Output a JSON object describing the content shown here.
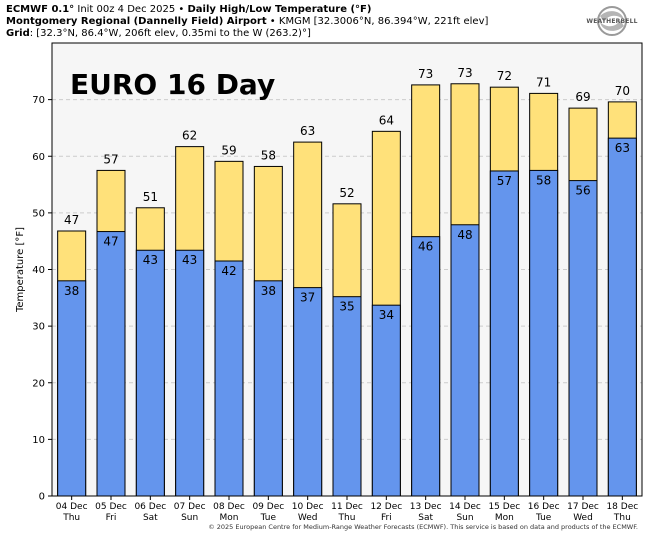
{
  "header": {
    "line1_bold": "ECMWF 0.1°",
    "line1_rest": " Init 00z 4 Dec 2025 • ",
    "line1_title": "Daily High/Low Temperature (°F)",
    "line2_bold": "Montgomery Regional (Dannelly Field) Airport",
    "line2_rest": " • KMGM [32.3006°N, 86.394°W, 221ft elev]",
    "line3_bold": "Grid",
    "line3_rest": ": [32.3°N, 86.4°W, 206ft elev, 0.35mi to the W (263.2)°]"
  },
  "logo": {
    "text": "WEATHERBELL"
  },
  "overlay_title": "EURO 16 Day",
  "footer": "© 2025 European Centre for Medium-Range Weather Forecasts (ECMWF). This service is based on data and products of the ECMWF.",
  "colors": {
    "high": "#ffe17a",
    "low": "#6495ed",
    "background": "#f6f6f6",
    "grid": "#cccccc"
  },
  "chart_data": {
    "type": "bar",
    "title": "Daily High/Low Temperature (°F)",
    "xlabel": "",
    "ylabel": "Temperature [°F]",
    "ylim": [
      0,
      80
    ],
    "yticks": [
      0,
      10,
      20,
      30,
      40,
      50,
      60,
      70
    ],
    "categories": [
      [
        "04 Dec",
        "Thu"
      ],
      [
        "05 Dec",
        "Fri"
      ],
      [
        "06 Dec",
        "Sat"
      ],
      [
        "07 Dec",
        "Sun"
      ],
      [
        "08 Dec",
        "Mon"
      ],
      [
        "09 Dec",
        "Tue"
      ],
      [
        "10 Dec",
        "Wed"
      ],
      [
        "11 Dec",
        "Thu"
      ],
      [
        "12 Dec",
        "Fri"
      ],
      [
        "13 Dec",
        "Sat"
      ],
      [
        "14 Dec",
        "Sun"
      ],
      [
        "15 Dec",
        "Mon"
      ],
      [
        "16 Dec",
        "Tue"
      ],
      [
        "17 Dec",
        "Wed"
      ],
      [
        "18 Dec",
        "Thu"
      ]
    ],
    "series": [
      {
        "name": "High",
        "values": [
          46.8,
          57.5,
          50.9,
          61.7,
          59.1,
          58.2,
          62.5,
          51.6,
          64.4,
          72.6,
          72.8,
          72.2,
          71.1,
          68.5,
          69.6
        ],
        "labels": [
          47,
          57,
          51,
          62,
          59,
          58,
          63,
          52,
          64,
          73,
          73,
          72,
          71,
          69,
          70
        ]
      },
      {
        "name": "Low",
        "values": [
          38.0,
          46.7,
          43.4,
          43.4,
          41.5,
          38.0,
          36.8,
          35.2,
          33.7,
          45.8,
          47.9,
          57.4,
          57.5,
          55.7,
          63.2
        ],
        "labels": [
          38,
          47,
          43,
          43,
          42,
          38,
          37,
          35,
          34,
          46,
          48,
          57,
          58,
          56,
          63
        ]
      }
    ],
    "grid": true
  }
}
